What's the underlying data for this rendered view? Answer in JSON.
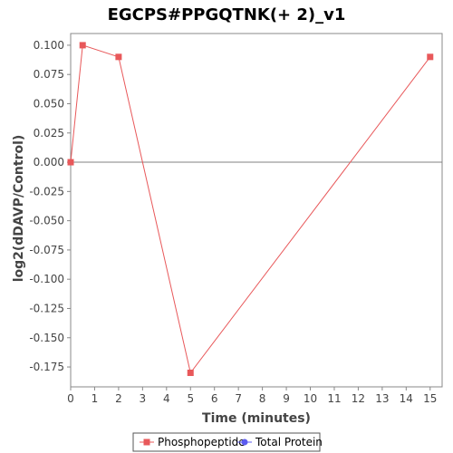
{
  "chart_data": {
    "type": "line",
    "title": "EGCPS#PPGQTNK(+ 2)_v1",
    "xlabel": "Time (minutes)",
    "ylabel": "log2(dDAVP/Control)",
    "xlim": [
      0,
      15.5
    ],
    "ylim": [
      -0.192,
      0.11
    ],
    "x_ticks": [
      0,
      1,
      2,
      3,
      4,
      5,
      6,
      7,
      8,
      9,
      10,
      11,
      12,
      13,
      14,
      15
    ],
    "y_ticks": [
      0.1,
      0.075,
      0.05,
      0.025,
      0.0,
      -0.025,
      -0.05,
      -0.075,
      -0.1,
      -0.125,
      -0.15,
      -0.175
    ],
    "y_tick_labels": [
      "0.100",
      "0.075",
      "0.050",
      "0.025",
      "0.000",
      "-0.025",
      "-0.050",
      "-0.075",
      "-0.100",
      "-0.125",
      "-0.150",
      "-0.175"
    ],
    "zero_line": true,
    "grid": false,
    "legend_position": "bottom",
    "series": [
      {
        "name": "Phosphopeptide",
        "color": "#e8585a",
        "marker": "square",
        "x": [
          0,
          0.5,
          2,
          5,
          15
        ],
        "y": [
          0.0,
          0.1,
          0.09,
          -0.18,
          0.09
        ]
      },
      {
        "name": "Total Protein",
        "color": "#5b5bf0",
        "marker": "circle",
        "x": [],
        "y": []
      }
    ]
  }
}
